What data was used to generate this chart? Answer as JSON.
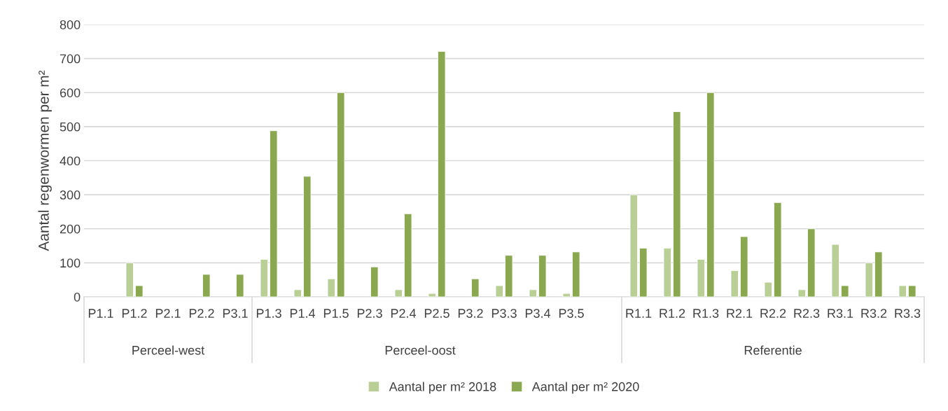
{
  "chart_data": {
    "type": "bar",
    "ylabel": "Aantal regenwormen per m²",
    "categories": [
      "P1.1",
      "P1.2",
      "P2.1",
      "P2.2",
      "P3.1",
      "P1.3",
      "P1.4",
      "P1.5",
      "P2.3",
      "P2.4",
      "P2.5",
      "P3.2",
      "P3.3",
      "P3.4",
      "P3.5",
      null,
      "R1.1",
      "R1.2",
      "R1.3",
      "R2.1",
      "R2.2",
      "R2.3",
      "R3.1",
      "R3.2",
      "R3.3"
    ],
    "series": [
      {
        "name": "Aantal per m² 2018",
        "color": "#b9cf96",
        "values": [
          null,
          100,
          null,
          null,
          null,
          110,
          21,
          53,
          null,
          21,
          10,
          null,
          33,
          21,
          10,
          null,
          300,
          143,
          110,
          77,
          43,
          21,
          154,
          100,
          33
        ]
      },
      {
        "name": "Aantal per m² 2020",
        "color": "#8aa84f",
        "values": [
          null,
          33,
          null,
          66,
          66,
          488,
          354,
          600,
          88,
          244,
          721,
          53,
          122,
          122,
          132,
          null,
          143,
          544,
          600,
          177,
          277,
          200,
          33,
          132,
          33
        ]
      }
    ],
    "annotations": [
      "Perceel-west",
      "Perceel-oost",
      "Referentie"
    ],
    "ylim": [
      0,
      800
    ],
    "yticks": [
      0,
      100,
      200,
      300,
      400,
      500,
      600,
      700,
      800
    ],
    "grid": "y",
    "legend": "bottom"
  }
}
